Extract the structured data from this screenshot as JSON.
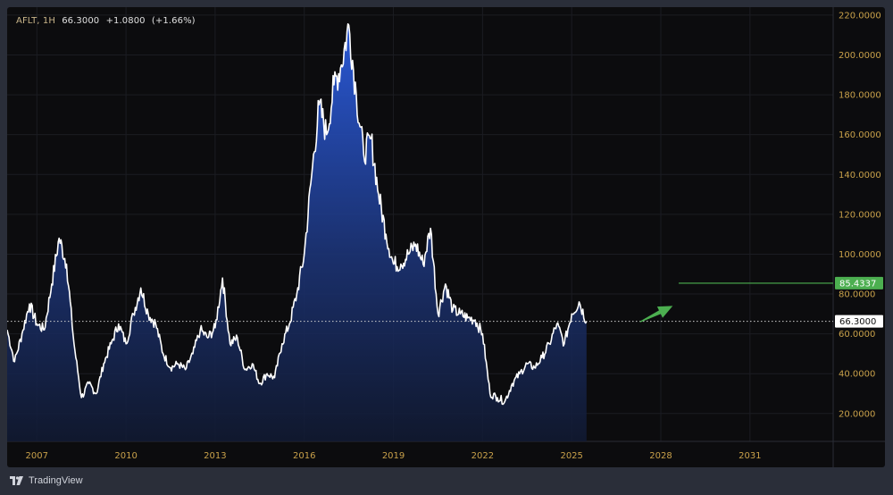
{
  "header": {
    "symbol": "AFLT, 1H",
    "price": "66.3000",
    "change": "+1.0800",
    "change_pct": "(+1.66%)"
  },
  "footer": {
    "brand": "TradingView"
  },
  "colors": {
    "background": "#0c0c0e",
    "axis_text": "#c9a14a",
    "line": "#ffffff",
    "area_top": "#2a5bdc",
    "target": "#4caf50"
  },
  "chart_data": {
    "type": "area",
    "title": "",
    "xlabel": "",
    "ylabel": "",
    "ylim": [
      6,
      224
    ],
    "xlim": [
      2006.0,
      2033.8
    ],
    "x_ticks": [
      "2007",
      "2010",
      "2013",
      "2016",
      "2019",
      "2022",
      "2025",
      "2028",
      "2031"
    ],
    "y_ticks": [
      "20.0000",
      "40.0000",
      "60.0000",
      "80.0000",
      "100.0000",
      "120.0000",
      "140.0000",
      "160.0000",
      "180.0000",
      "200.0000",
      "220.0000"
    ],
    "grid": true,
    "current_price": {
      "value": 66.3,
      "label": "66.3000"
    },
    "target": {
      "value": 85.4337,
      "label": "85.4337",
      "x_start": 2028.6
    },
    "arrow": {
      "from": [
        2027.3,
        66
      ],
      "to": [
        2028.4,
        74
      ]
    },
    "series": [
      {
        "x": [
          2006.0,
          2006.25,
          2006.5,
          2006.75,
          2007.0,
          2007.25,
          2007.5,
          2007.75,
          2008.0,
          2008.25,
          2008.5,
          2008.75,
          2009.0,
          2009.25,
          2009.5,
          2009.75,
          2010.0,
          2010.25,
          2010.5,
          2010.75,
          2011.0,
          2011.25,
          2011.5,
          2011.75,
          2012.0,
          2012.25,
          2012.5,
          2012.75,
          2013.0,
          2013.25,
          2013.5,
          2013.75,
          2014.0,
          2014.25,
          2014.5,
          2014.75,
          2015.0,
          2015.25,
          2015.5,
          2015.75,
          2016.0,
          2016.25,
          2016.5,
          2016.75,
          2017.0,
          2017.25,
          2017.5,
          2017.75,
          2018.0,
          2018.25,
          2018.5,
          2018.75,
          2019.0,
          2019.25,
          2019.5,
          2019.75,
          2020.0,
          2020.25,
          2020.5,
          2020.75,
          2021.0,
          2021.25,
          2021.5,
          2021.75,
          2022.0,
          2022.25,
          2022.5,
          2022.75,
          2023.0,
          2023.25,
          2023.5,
          2023.75,
          2024.0,
          2024.25,
          2024.5,
          2024.75,
          2025.0,
          2025.25,
          2025.5
        ],
        "y": [
          62,
          46,
          60,
          75,
          65,
          62,
          85,
          108,
          95,
          55,
          28,
          35,
          30,
          45,
          55,
          65,
          55,
          70,
          83,
          70,
          65,
          50,
          43,
          45,
          42,
          50,
          62,
          58,
          63,
          88,
          55,
          58,
          42,
          45,
          35,
          40,
          38,
          55,
          65,
          80,
          100,
          140,
          175,
          160,
          185,
          195,
          215,
          180,
          150,
          158,
          130,
          110,
          95,
          95,
          100,
          105,
          95,
          113,
          70,
          85,
          72,
          70,
          68,
          67,
          60,
          30,
          28,
          26,
          35,
          40,
          45,
          43,
          48,
          55,
          65,
          55,
          70,
          76,
          66.3
        ]
      }
    ]
  }
}
